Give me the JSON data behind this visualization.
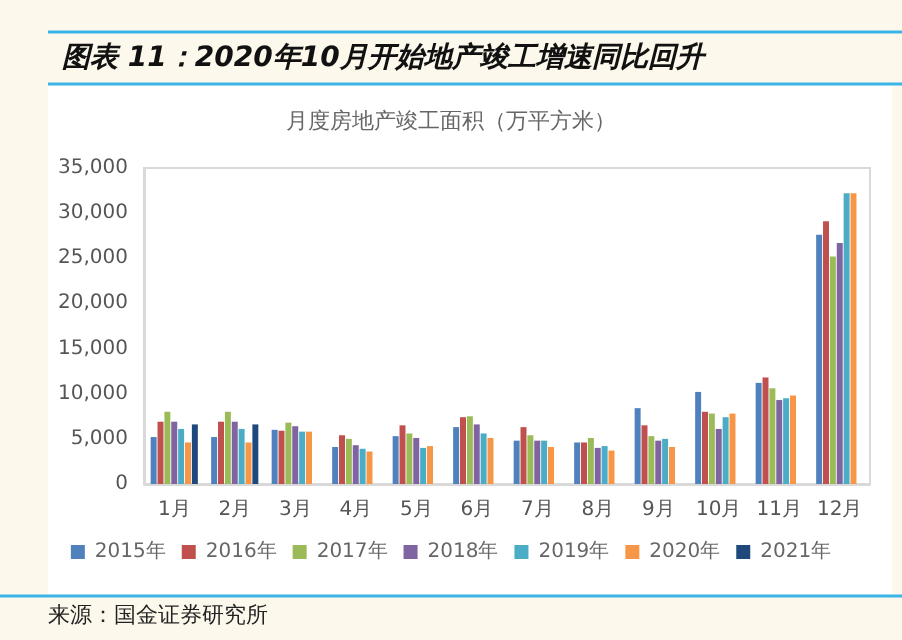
{
  "chart_data": {
    "type": "bar",
    "title": "图表 11：2020年10月开始地产竣工增速同比回升",
    "subtitle": "月度房地产竣工面积（万平方米）",
    "categories": [
      "1月",
      "2月",
      "3月",
      "4月",
      "5月",
      "6月",
      "7月",
      "8月",
      "9月",
      "10月",
      "11月",
      "12月"
    ],
    "series": [
      {
        "name": "2015年",
        "color": "#4f81bd",
        "values": [
          5200,
          5200,
          6000,
          4100,
          5300,
          6300,
          4800,
          4600,
          8400,
          10200,
          11200,
          27600
        ]
      },
      {
        "name": "2016年",
        "color": "#c0504d",
        "values": [
          6900,
          6900,
          5900,
          5400,
          6500,
          7400,
          6300,
          4600,
          6500,
          8000,
          11800,
          29100
        ]
      },
      {
        "name": "2017年",
        "color": "#9bbb59",
        "values": [
          8000,
          8000,
          6800,
          5000,
          5600,
          7500,
          5400,
          5100,
          5300,
          7800,
          10600,
          25200
        ]
      },
      {
        "name": "2018年",
        "color": "#8064a2",
        "values": [
          6900,
          6900,
          6400,
          4300,
          5100,
          6600,
          4800,
          4000,
          4800,
          6100,
          9300,
          26700
        ]
      },
      {
        "name": "2019年",
        "color": "#4bacc6",
        "values": [
          6100,
          6100,
          5800,
          3900,
          4000,
          5600,
          4800,
          4200,
          5000,
          7400,
          9500,
          32200
        ]
      },
      {
        "name": "2020年",
        "color": "#f79646",
        "values": [
          4600,
          4600,
          5800,
          3600,
          4200,
          5100,
          4100,
          3700,
          4100,
          7800,
          9800,
          32200
        ]
      },
      {
        "name": "2021年",
        "color": "#1f497d",
        "values": [
          6600,
          6600,
          null,
          null,
          null,
          null,
          null,
          null,
          null,
          null,
          null,
          null
        ]
      }
    ],
    "ylim": [
      0,
      35000
    ],
    "yticks": [
      0,
      {
        "value": 5000,
        "label": "5,000"
      },
      {
        "value": 10000,
        "label": "10,000"
      },
      {
        "value": 15000,
        "label": "15,000"
      },
      {
        "value": 20000,
        "label": "20,000"
      },
      {
        "value": 25000,
        "label": "25,000"
      },
      {
        "value": 30000,
        "label": "30,000"
      },
      {
        "value": 35000,
        "label": "35,000"
      }
    ],
    "grid": false,
    "legend": "bottom",
    "annotations": [
      "来源：国金证券研究所"
    ]
  }
}
